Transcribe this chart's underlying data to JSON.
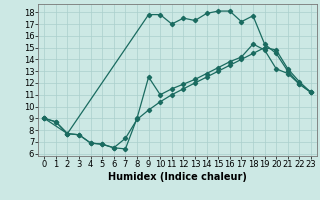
{
  "xlabel": "Humidex (Indice chaleur)",
  "background_color": "#cce8e4",
  "line_color": "#1a6b60",
  "grid_color": "#aacfcc",
  "xlim": [
    -0.5,
    23.5
  ],
  "ylim": [
    5.8,
    18.7
  ],
  "xticks": [
    0,
    1,
    2,
    3,
    4,
    5,
    6,
    7,
    8,
    9,
    10,
    11,
    12,
    13,
    14,
    15,
    16,
    17,
    18,
    19,
    20,
    21,
    22,
    23
  ],
  "yticks": [
    6,
    7,
    8,
    9,
    10,
    11,
    12,
    13,
    14,
    15,
    16,
    17,
    18
  ],
  "line_top_x": [
    0,
    2,
    9,
    10,
    11,
    12,
    13,
    14,
    15,
    16,
    17,
    18,
    19,
    20,
    21,
    22,
    23
  ],
  "line_top_y": [
    9.0,
    7.7,
    17.8,
    17.8,
    17.0,
    17.5,
    17.3,
    17.9,
    18.1,
    18.1,
    17.2,
    17.7,
    15.3,
    14.5,
    13.0,
    11.9,
    11.2
  ],
  "line_mid_x": [
    0,
    1,
    2,
    3,
    4,
    5,
    6,
    7,
    8,
    9,
    10,
    11,
    12,
    13,
    14,
    15,
    16,
    17,
    18,
    19,
    20,
    21,
    22,
    23
  ],
  "line_mid_y": [
    9.0,
    8.7,
    7.7,
    7.6,
    6.9,
    6.8,
    6.5,
    7.3,
    8.9,
    9.7,
    10.4,
    11.0,
    11.5,
    12.0,
    12.5,
    13.0,
    13.5,
    14.0,
    14.5,
    15.0,
    14.8,
    13.2,
    12.1,
    11.2
  ],
  "line_bot_x": [
    0,
    1,
    2,
    3,
    4,
    5,
    6,
    7,
    8,
    9,
    10,
    11,
    12,
    13,
    14,
    15,
    16,
    17,
    18,
    19,
    20,
    21,
    22,
    23
  ],
  "line_bot_y": [
    9.0,
    8.7,
    7.7,
    7.6,
    6.9,
    6.8,
    6.5,
    6.4,
    9.0,
    12.5,
    11.0,
    11.5,
    11.9,
    12.3,
    12.8,
    13.3,
    13.8,
    14.2,
    15.3,
    14.8,
    13.2,
    12.8,
    11.9,
    11.2
  ],
  "fontsize_xlabel": 7,
  "fontsize_ticks": 6
}
